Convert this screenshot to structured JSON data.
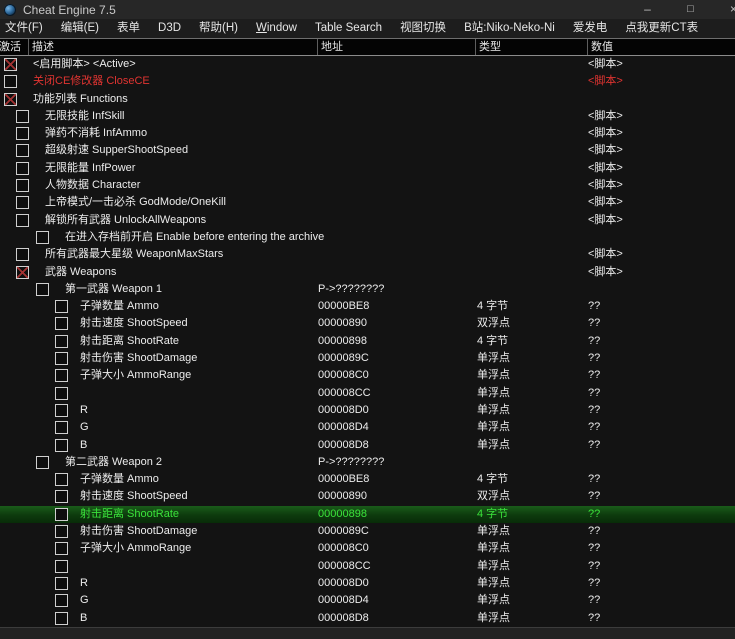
{
  "window": {
    "title": "Cheat Engine 7.5",
    "controls": {
      "minimize": "–",
      "maximize": "□",
      "close": "×"
    }
  },
  "menu": {
    "items": [
      {
        "label": "文件(F)"
      },
      {
        "label": "编辑(E)"
      },
      {
        "label": "表单"
      },
      {
        "label": "D3D"
      },
      {
        "label": "帮助(H)"
      },
      {
        "label": "Window",
        "underline": true
      },
      {
        "label": "Table Search"
      },
      {
        "label": "视图切换"
      },
      {
        "label": "B站:Niko-Neko-Ni"
      },
      {
        "label": "爱发电"
      },
      {
        "label": "点我更新CT表"
      }
    ]
  },
  "table": {
    "columns": [
      "激活",
      "描述",
      "地址",
      "类型",
      "数值"
    ],
    "rows": [
      {
        "indent": 0,
        "check": "checked",
        "label": "<启用脚本>  <Active>",
        "address": "",
        "type": "",
        "value": "<脚本>",
        "style": "normal"
      },
      {
        "indent": 0,
        "check": "unchecked",
        "label": "关闭CE修改器  CloseCE",
        "address": "",
        "type": "",
        "value": "<脚本>",
        "style": "red"
      },
      {
        "indent": 0,
        "check": "checked",
        "label": "功能列表 Functions",
        "address": "",
        "type": "",
        "value": "",
        "style": "normal"
      },
      {
        "indent": 1,
        "check": "unchecked",
        "label": "无限技能 InfSkill",
        "address": "",
        "type": "",
        "value": "<脚本>",
        "style": "normal"
      },
      {
        "indent": 1,
        "check": "unchecked",
        "label": "弹药不消耗 InfAmmo",
        "address": "",
        "type": "",
        "value": "<脚本>",
        "style": "normal"
      },
      {
        "indent": 1,
        "check": "unchecked",
        "label": "超级射速 SupperShootSpeed",
        "address": "",
        "type": "",
        "value": "<脚本>",
        "style": "normal"
      },
      {
        "indent": 1,
        "check": "unchecked",
        "label": "无限能量 InfPower",
        "address": "",
        "type": "",
        "value": "<脚本>",
        "style": "normal"
      },
      {
        "indent": 1,
        "check": "unchecked",
        "label": "人物数据 Character",
        "address": "",
        "type": "",
        "value": "<脚本>",
        "style": "normal"
      },
      {
        "indent": 1,
        "check": "unchecked",
        "label": "上帝模式/一击必杀 GodMode/OneKill",
        "address": "",
        "type": "",
        "value": "<脚本>",
        "style": "normal"
      },
      {
        "indent": 1,
        "check": "unchecked",
        "label": "解锁所有武器 UnlockAllWeapons",
        "address": "",
        "type": "",
        "value": "<脚本>",
        "style": "normal"
      },
      {
        "indent": 2,
        "check": "unchecked",
        "label": "在进入存档前开启 Enable before entering the archive",
        "address": "",
        "type": "",
        "value": "",
        "style": "normal"
      },
      {
        "indent": 1,
        "check": "unchecked",
        "label": "所有武器最大星级 WeaponMaxStars",
        "address": "",
        "type": "",
        "value": "<脚本>",
        "style": "normal"
      },
      {
        "indent": 1,
        "check": "checked",
        "label": "武器 Weapons",
        "address": "",
        "type": "",
        "value": "<脚本>",
        "style": "normal"
      },
      {
        "indent": 2,
        "check": "unchecked",
        "label": "第一武器 Weapon 1",
        "address": "P->????????",
        "type": "",
        "value": "",
        "style": "normal"
      },
      {
        "indent": 3,
        "check": "unchecked",
        "label": "子弹数量 Ammo",
        "address": "00000BE8",
        "type": "4 字节",
        "value": "??",
        "style": "normal"
      },
      {
        "indent": 3,
        "check": "unchecked",
        "label": "射击速度 ShootSpeed",
        "address": "00000890",
        "type": "双浮点",
        "value": "??",
        "style": "normal"
      },
      {
        "indent": 3,
        "check": "unchecked",
        "label": "射击距离 ShootRate",
        "address": "00000898",
        "type": "4 字节",
        "value": "??",
        "style": "normal"
      },
      {
        "indent": 3,
        "check": "unchecked",
        "label": "射击伤害 ShootDamage",
        "address": "0000089C",
        "type": "单浮点",
        "value": "??",
        "style": "normal"
      },
      {
        "indent": 3,
        "check": "unchecked",
        "label": "子弹大小 AmmoRange",
        "address": "000008C0",
        "type": "单浮点",
        "value": "??",
        "style": "normal"
      },
      {
        "indent": 3,
        "check": "unchecked",
        "label": "",
        "address": "000008CC",
        "type": "单浮点",
        "value": "??",
        "style": "normal"
      },
      {
        "indent": 3,
        "check": "unchecked",
        "label": "R",
        "address": "000008D0",
        "type": "单浮点",
        "value": "??",
        "style": "normal"
      },
      {
        "indent": 3,
        "check": "unchecked",
        "label": "G",
        "address": "000008D4",
        "type": "单浮点",
        "value": "??",
        "style": "normal"
      },
      {
        "indent": 3,
        "check": "unchecked",
        "label": "B",
        "address": "000008D8",
        "type": "单浮点",
        "value": "??",
        "style": "normal"
      },
      {
        "indent": 2,
        "check": "unchecked",
        "label": "第二武器 Weapon 2",
        "address": "P->????????",
        "type": "",
        "value": "",
        "style": "normal"
      },
      {
        "indent": 3,
        "check": "unchecked",
        "label": "子弹数量 Ammo",
        "address": "00000BE8",
        "type": "4 字节",
        "value": "??",
        "style": "normal"
      },
      {
        "indent": 3,
        "check": "unchecked",
        "label": "射击速度 ShootSpeed",
        "address": "00000890",
        "type": "双浮点",
        "value": "??",
        "style": "normal"
      },
      {
        "indent": 3,
        "check": "unchecked",
        "label": "射击距离 ShootRate",
        "address": "00000898",
        "type": "4 字节",
        "value": "??",
        "style": "selected"
      },
      {
        "indent": 3,
        "check": "unchecked",
        "label": "射击伤害 ShootDamage",
        "address": "0000089C",
        "type": "单浮点",
        "value": "??",
        "style": "normal"
      },
      {
        "indent": 3,
        "check": "unchecked",
        "label": "子弹大小 AmmoRange",
        "address": "000008C0",
        "type": "单浮点",
        "value": "??",
        "style": "normal"
      },
      {
        "indent": 3,
        "check": "unchecked",
        "label": "",
        "address": "000008CC",
        "type": "单浮点",
        "value": "??",
        "style": "normal"
      },
      {
        "indent": 3,
        "check": "unchecked",
        "label": "R",
        "address": "000008D0",
        "type": "单浮点",
        "value": "??",
        "style": "normal"
      },
      {
        "indent": 3,
        "check": "unchecked",
        "label": "G",
        "address": "000008D4",
        "type": "单浮点",
        "value": "??",
        "style": "normal"
      },
      {
        "indent": 3,
        "check": "unchecked",
        "label": "B",
        "address": "000008D8",
        "type": "单浮点",
        "value": "??",
        "style": "normal"
      }
    ]
  },
  "colors": {
    "red_text": "#e13431",
    "checked_x": "#a23232",
    "selected_bg": "#0d3a0d",
    "selected_text": "#3ae23a",
    "titlebar_bg": "#272727",
    "header_bg": "#040404",
    "list_bg": "#131313"
  }
}
